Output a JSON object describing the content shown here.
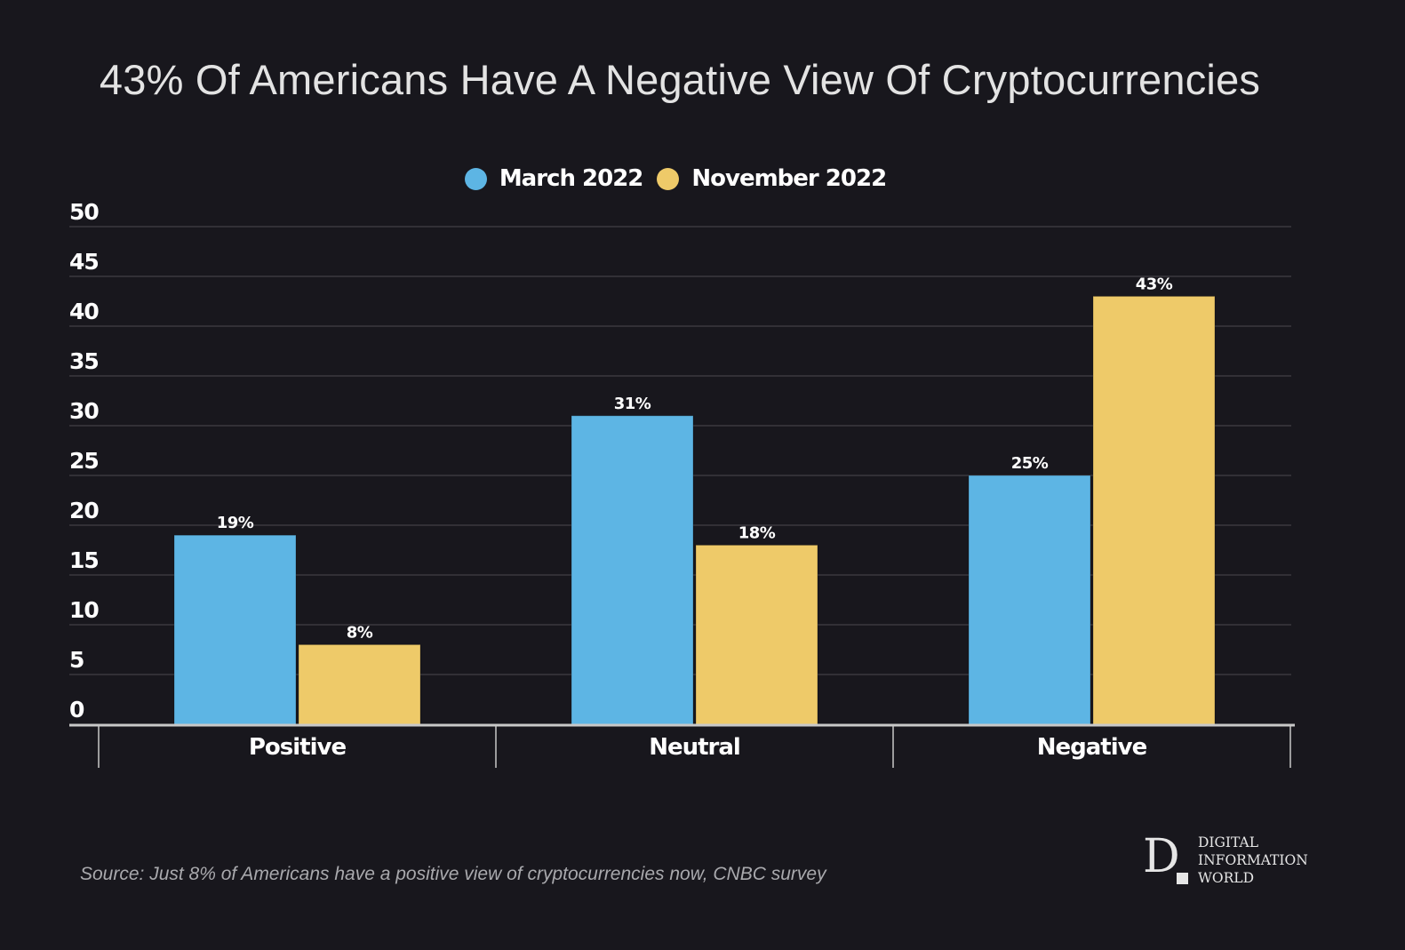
{
  "title": "43% Of Americans Have A Negative View Of Cryptocurrencies",
  "legend": [
    {
      "label": "March 2022",
      "color": "#5db5e4"
    },
    {
      "label": "November 2022",
      "color": "#eeca69"
    }
  ],
  "source": "Source: Just 8% of Americans have a positive view of cryptocurrencies now, CNBC survey",
  "logo": {
    "mark": "D",
    "lines": [
      "DIGITAL",
      "INFORMATION",
      "WORLD"
    ]
  },
  "chart_data": {
    "type": "bar",
    "title": "43% Of Americans Have A Negative View Of Cryptocurrencies",
    "xlabel": "",
    "ylabel": "",
    "categories": [
      "Positive",
      "Neutral",
      "Negative"
    ],
    "series": [
      {
        "name": "March 2022",
        "color": "#5db5e4",
        "values": [
          19,
          31,
          25
        ],
        "labels": [
          "19%",
          "31%",
          "25%"
        ]
      },
      {
        "name": "November 2022",
        "color": "#eeca69",
        "values": [
          8,
          18,
          43
        ],
        "labels": [
          "8%",
          "18%",
          "43%"
        ]
      }
    ],
    "ylim": [
      0,
      50
    ],
    "yticks": [
      0,
      5,
      10,
      15,
      20,
      25,
      30,
      35,
      40,
      45,
      50
    ],
    "grid": true,
    "legend_position": "top-center"
  }
}
